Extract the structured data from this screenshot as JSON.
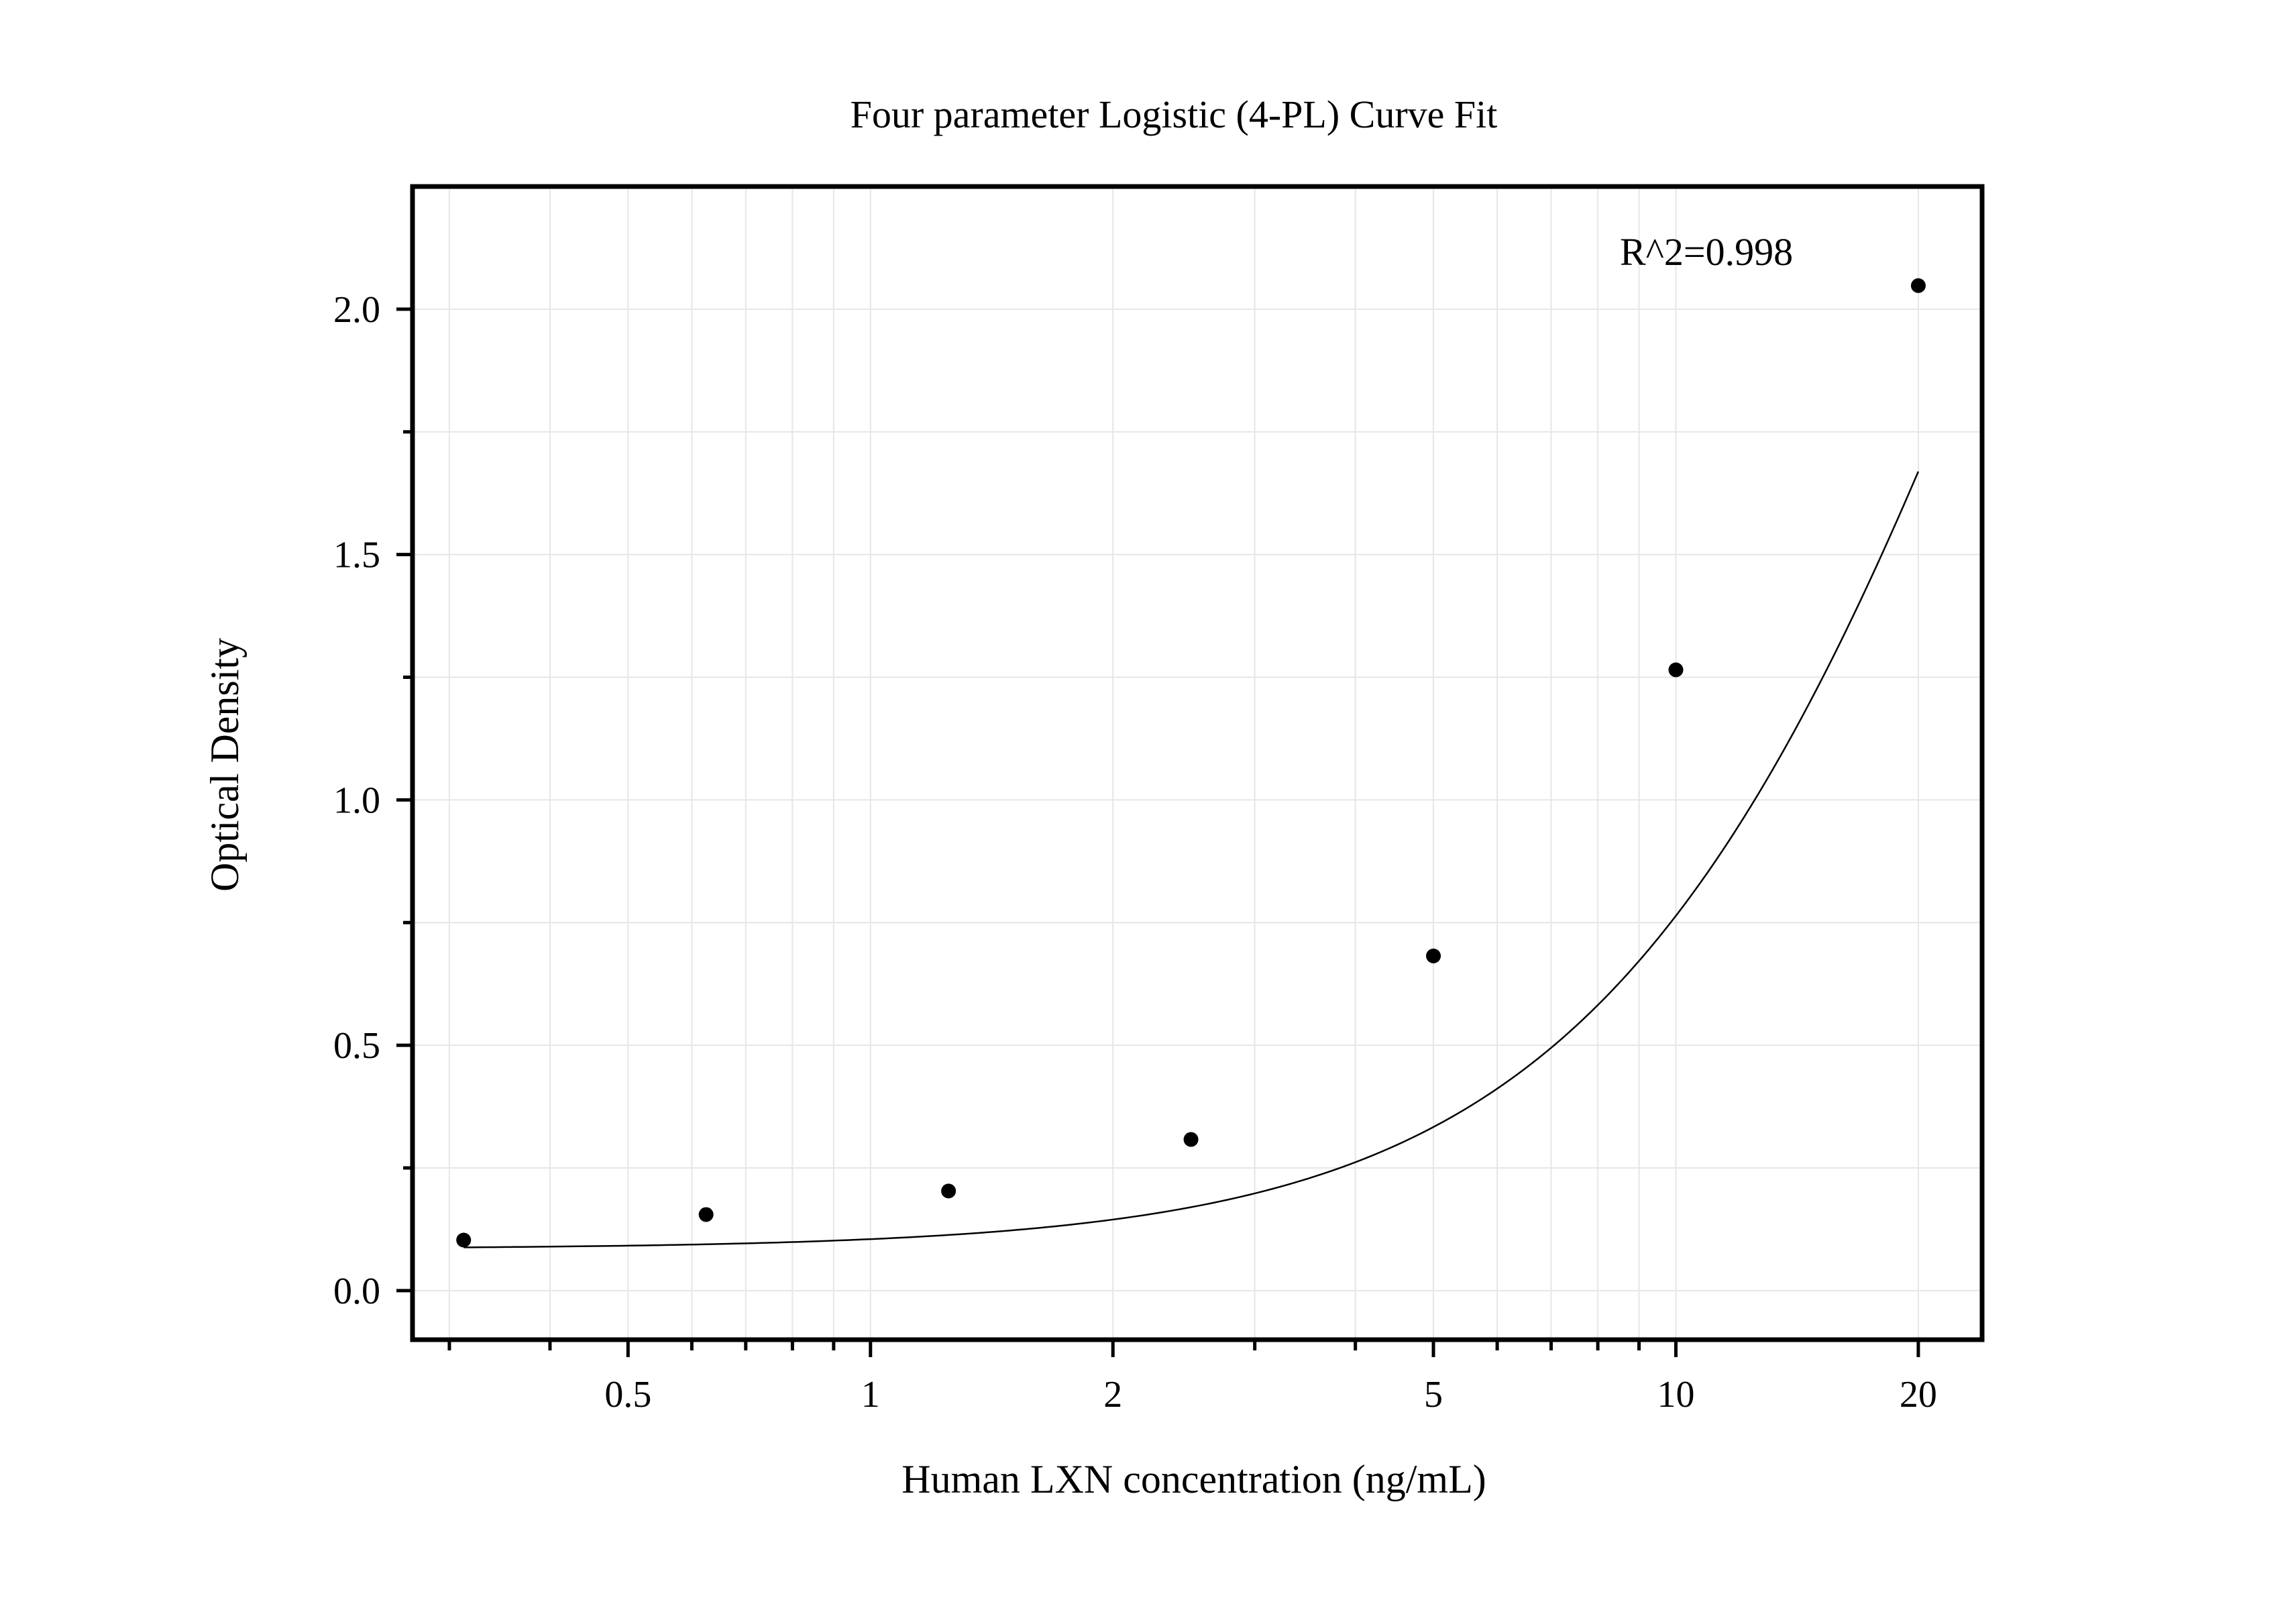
{
  "chart_data": {
    "type": "scatter",
    "title": "Four parameter Logistic (4-PL) Curve Fit",
    "xlabel": "Human LXN concentration (ng/mL)",
    "ylabel": "Optical Density",
    "x_scale": "log",
    "xlim": [
      0.27,
      24
    ],
    "ylim": [
      -0.1,
      2.25
    ],
    "grid": true,
    "legend": "none",
    "x_ticks": [
      {
        "value": 0.5,
        "label": "0.5"
      },
      {
        "value": 1,
        "label": "1"
      },
      {
        "value": 2,
        "label": "2"
      },
      {
        "value": 5,
        "label": "5"
      },
      {
        "value": 10,
        "label": "10"
      },
      {
        "value": 20,
        "label": "20"
      }
    ],
    "y_ticks": [
      {
        "value": 0.0,
        "label": "0.0"
      },
      {
        "value": 0.5,
        "label": "0.5"
      },
      {
        "value": 1.0,
        "label": "1.0"
      },
      {
        "value": 1.5,
        "label": "1.5"
      },
      {
        "value": 2.0,
        "label": "2.0"
      }
    ],
    "series": [
      {
        "x": [
          0.3125,
          0.625,
          1.25,
          2.5,
          5,
          10,
          20
        ],
        "y": [
          0.103,
          0.155,
          0.203,
          0.308,
          0.682,
          1.265,
          2.048
        ],
        "marker": "circle",
        "color": "#000000"
      }
    ],
    "fit_curve": {
      "model": "4-PL",
      "x_range": [
        0.3125,
        20
      ],
      "params": {
        "A": 0.085,
        "B": 1.6,
        "C": 30,
        "D": 4.7
      },
      "color": "#000000"
    },
    "annotations": [
      {
        "text": "R^2=0.998"
      }
    ]
  },
  "colors": {
    "background": "#ffffff",
    "grid": "#e6e6e6",
    "axis": "#000000",
    "points": "#000000"
  }
}
